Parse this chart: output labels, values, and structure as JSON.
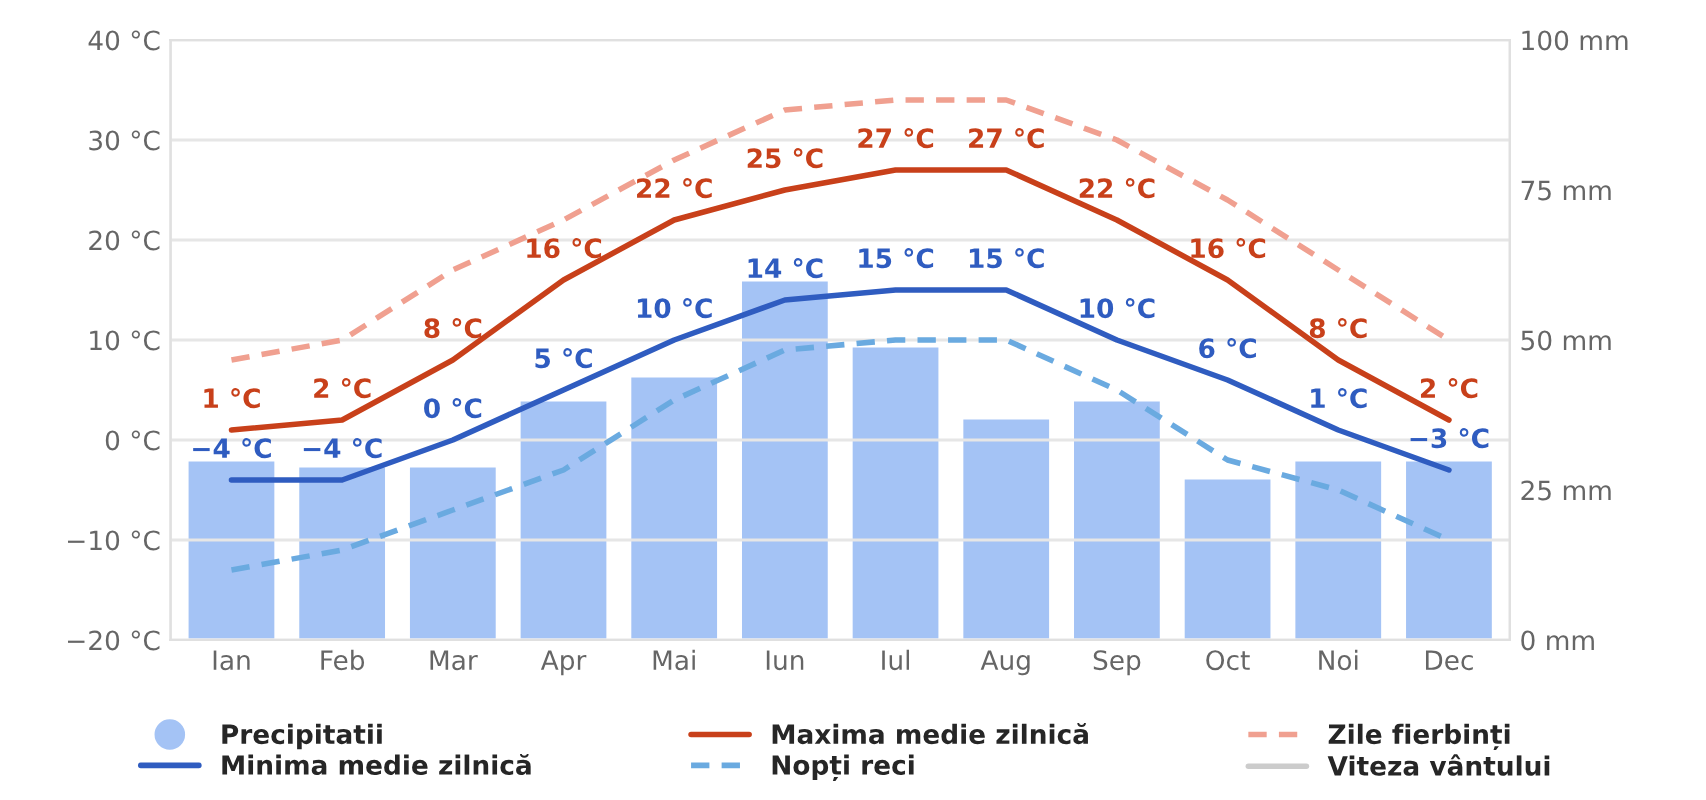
{
  "chart_data": {
    "type": "line",
    "categories": [
      "Ian",
      "Feb",
      "Mar",
      "Apr",
      "Mai",
      "Iun",
      "Iul",
      "Aug",
      "Sep",
      "Oct",
      "Noi",
      "Dec"
    ],
    "series": [
      {
        "name": "Precipitatii",
        "type": "bar",
        "axis": "y2",
        "color": "#a4c3f5",
        "values": [
          30,
          29,
          29,
          40,
          44,
          60,
          49,
          37,
          40,
          27,
          30,
          30
        ]
      },
      {
        "name": "Maxima medie zilnică",
        "color": "#c8401a",
        "line_style": "solid",
        "values": [
          1,
          2,
          8,
          16,
          22,
          25,
          27,
          27,
          22,
          16,
          8,
          2
        ],
        "value_labels": [
          "1 °C",
          "2 °C",
          "8 °C",
          "16 °C",
          "22 °C",
          "25 °C",
          "27 °C",
          "27 °C",
          "22 °C",
          "16 °C",
          "8 °C",
          "2 °C"
        ]
      },
      {
        "name": "Zile fierbinți",
        "color": "#f0a090",
        "line_style": "dashed",
        "values": [
          8,
          10,
          17,
          22,
          28,
          33,
          34,
          34,
          30,
          24,
          17,
          10
        ]
      },
      {
        "name": "Minima medie zilnică",
        "color": "#2f5cc0",
        "line_style": "solid",
        "values": [
          -4,
          -4,
          0,
          5,
          10,
          14,
          15,
          15,
          10,
          6,
          1,
          -3
        ],
        "value_labels": [
          "−4 °C",
          "−4 °C",
          "0 °C",
          "5 °C",
          "10 °C",
          "14 °C",
          "15 °C",
          "15 °C",
          "10 °C",
          "6 °C",
          "1 °C",
          "−3 °C"
        ]
      },
      {
        "name": "Nopți reci",
        "color": "#6aaae0",
        "line_style": "dashed",
        "values": [
          -13,
          -11,
          -7,
          -3,
          4,
          9,
          10,
          10,
          5,
          -2,
          -5,
          -10
        ]
      },
      {
        "name": "Viteza vântului",
        "color": "#cccccc",
        "line_style": "solid",
        "values": [
          null,
          null,
          null,
          null,
          null,
          null,
          null,
          null,
          null,
          null,
          null,
          null
        ]
      }
    ],
    "ylim": [
      -20,
      40
    ],
    "yticks": [
      {
        "value": -20,
        "label": "−20 °C"
      },
      {
        "value": -10,
        "label": "−10 °C"
      },
      {
        "value": 0,
        "label": "0 °C"
      },
      {
        "value": 10,
        "label": "10 °C"
      },
      {
        "value": 20,
        "label": "20 °C"
      },
      {
        "value": 30,
        "label": "30 °C"
      },
      {
        "value": 40,
        "label": "40 °C"
      }
    ],
    "y2lim": [
      0,
      100
    ],
    "y2ticks": [
      {
        "value": 0,
        "label": "0 mm"
      },
      {
        "value": 25,
        "label": "25 mm"
      },
      {
        "value": 50,
        "label": "50 mm"
      },
      {
        "value": 75,
        "label": "75 mm"
      },
      {
        "value": 100,
        "label": "100 mm"
      }
    ],
    "grid": "y",
    "legend": "bottom",
    "marker": "none"
  }
}
